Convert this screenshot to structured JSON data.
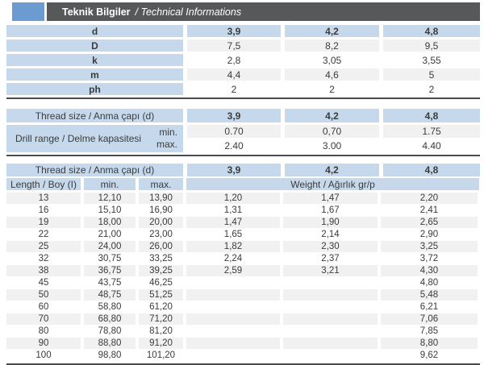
{
  "page_header": {
    "title_bold": "Teknik Bilgiler",
    "title_italic": "/ Technical Informations"
  },
  "colors": {
    "accent_blue": "#6b9bd1",
    "title_bar_gray": "#57585a",
    "header_cell_blue": "#c6d9ec",
    "stripe_gray": "#f1f1f2",
    "rule_dark": "#4b4b4d"
  },
  "dimensions_table": {
    "header": {
      "label": "d",
      "sizes": [
        "3,9",
        "4,2",
        "4,8"
      ]
    },
    "rows": [
      {
        "label": "D",
        "values": [
          "7,5",
          "8,2",
          "9,5"
        ]
      },
      {
        "label": "k",
        "values": [
          "2,8",
          "3,05",
          "3,55"
        ]
      },
      {
        "label": "m",
        "values": [
          "4,4",
          "4,6",
          "5"
        ]
      },
      {
        "label": "ph",
        "values": [
          "2",
          "2",
          "2"
        ]
      }
    ]
  },
  "drill_table": {
    "header": {
      "label": "Thread size / Anma çapı (d)",
      "sizes": [
        "3,9",
        "4,2",
        "4,8"
      ]
    },
    "range_label": "Drill range / Delme kapasitesi",
    "min_label": "min.",
    "max_label": "max.",
    "min_values": [
      "0.70",
      "0,70",
      "1.75"
    ],
    "max_values": [
      "2.40",
      "3.00",
      "4.40"
    ]
  },
  "length_table": {
    "header": {
      "label": "Thread size / Anma çapı (d)",
      "sizes": [
        "3,9",
        "4,2",
        "4,8"
      ]
    },
    "columns": {
      "length": "Length / Boy (I)",
      "min": "min.",
      "max": "max.",
      "weight": "Weight / Ağırlık gr/p"
    },
    "rows": [
      [
        "13",
        "12,10",
        "13,90",
        "1,20",
        "1,47",
        "2,20"
      ],
      [
        "16",
        "15,10",
        "16,90",
        "1,31",
        "1,67",
        "2,41"
      ],
      [
        "19",
        "18,00",
        "20,00",
        "1,47",
        "1,90",
        "2,65"
      ],
      [
        "22",
        "21,00",
        "23,00",
        "1,65",
        "2,14",
        "2,90"
      ],
      [
        "25",
        "24,00",
        "26,00",
        "1,82",
        "2,30",
        "3,25"
      ],
      [
        "32",
        "30,75",
        "33,25",
        "2,24",
        "2,37",
        "3,72"
      ],
      [
        "38",
        "36,75",
        "39,25",
        "2,59",
        "3,21",
        "4,30"
      ],
      [
        "45",
        "43,75",
        "46,25",
        "",
        "",
        "4,80"
      ],
      [
        "50",
        "48,75",
        "51,25",
        "",
        "",
        "5,48"
      ],
      [
        "60",
        "58,80",
        "61,20",
        "",
        "",
        "6,21"
      ],
      [
        "70",
        "68,80",
        "71,20",
        "",
        "",
        "7,06"
      ],
      [
        "80",
        "78,80",
        "81,20",
        "",
        "",
        "7,85"
      ],
      [
        "90",
        "88,80",
        "91,20",
        "",
        "",
        "8,80"
      ],
      [
        "100",
        "98,80",
        "101,20",
        "",
        "",
        "9,62"
      ]
    ]
  }
}
